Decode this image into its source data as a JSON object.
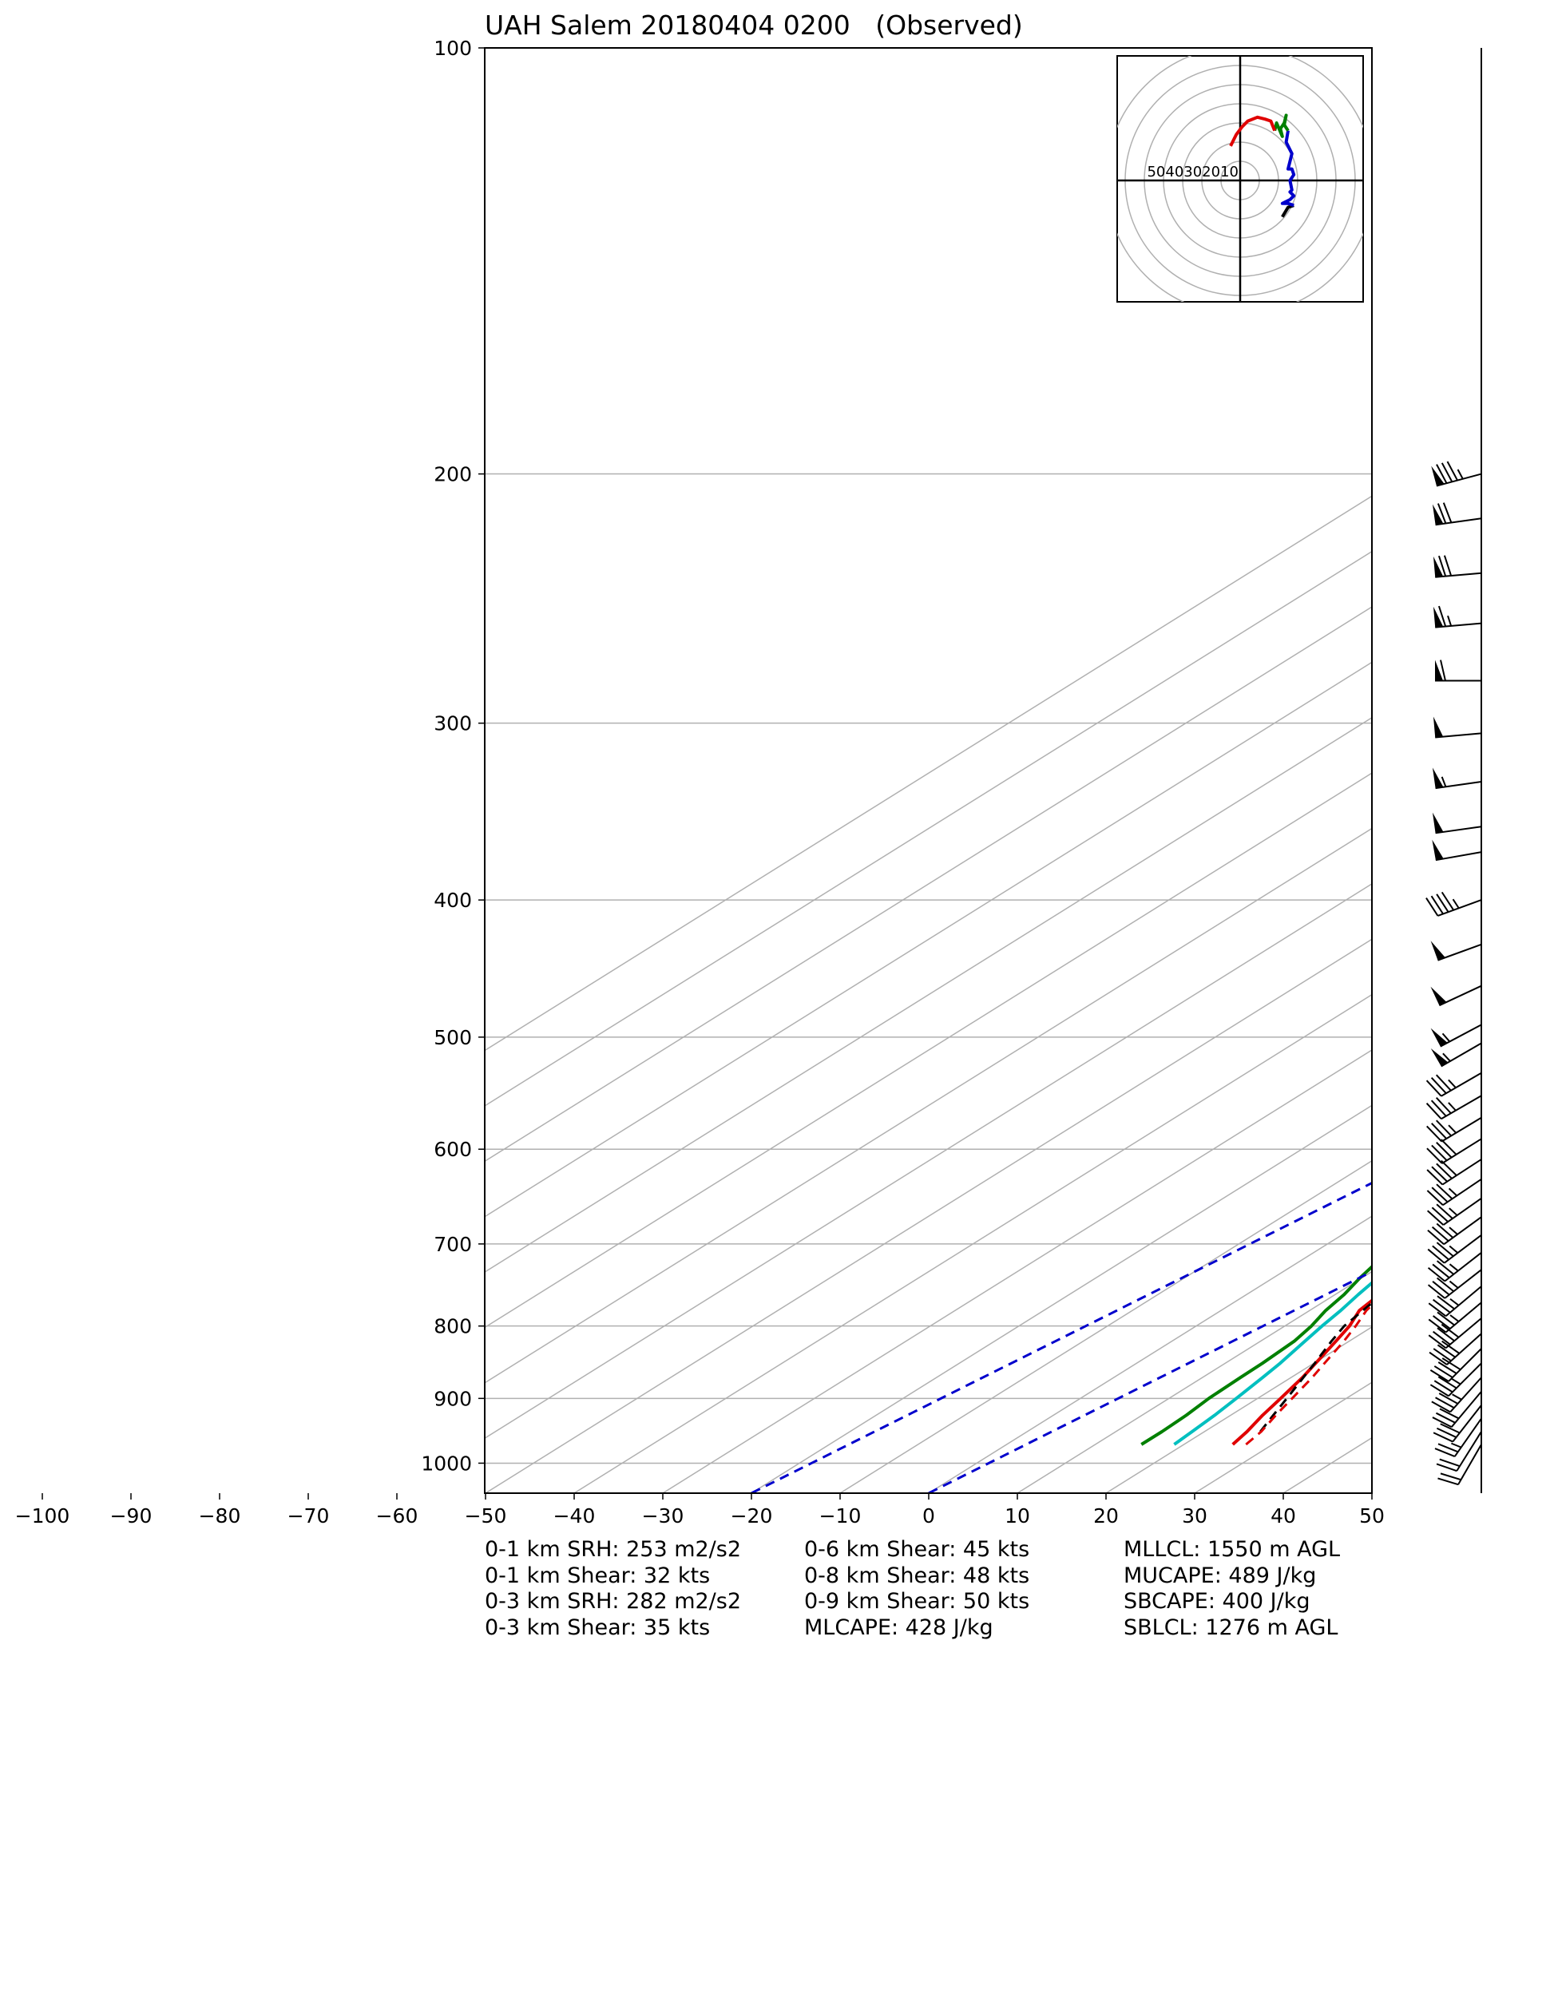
{
  "chart_data": {
    "type": "skew-t",
    "title": "UAH Salem 20180404 0200   (Observed)",
    "ylabel": "",
    "xlabel": "",
    "y_scale": "log",
    "y_inverted": true,
    "ylim": [
      1050,
      100
    ],
    "xlim": [
      -100,
      50
    ],
    "y_ticks": [
      100,
      200,
      300,
      400,
      500,
      600,
      700,
      800,
      900,
      1000
    ],
    "x_ticks": [
      -100,
      -90,
      -80,
      -70,
      -60,
      -50,
      -40,
      -30,
      -20,
      -10,
      0,
      10,
      20,
      30,
      40,
      50
    ],
    "skewed_isotherms": [
      -130,
      -120,
      -110,
      -100,
      -90,
      -80,
      -70,
      -60,
      -50,
      -40,
      -30,
      -20,
      -10,
      0,
      10,
      20,
      30,
      40,
      50
    ],
    "highlighted_isotherms": [
      -20,
      0
    ],
    "series": [
      {
        "color": "#e00000",
        "points": [
          [
            970,
            25.5
          ],
          [
            950,
            24.8
          ],
          [
            925,
            23.6
          ],
          [
            900,
            22.6
          ],
          [
            870,
            21.3
          ],
          [
            850,
            20.2
          ],
          [
            820,
            18.5
          ],
          [
            800,
            17.3
          ],
          [
            780,
            15.6
          ],
          [
            760,
            15.0
          ],
          [
            740,
            14.2
          ],
          [
            720,
            13.6
          ],
          [
            700,
            12.6
          ],
          [
            680,
            12.0
          ],
          [
            660,
            11.2
          ],
          [
            640,
            10.5
          ],
          [
            620,
            10.3
          ],
          [
            600,
            9.8
          ],
          [
            580,
            9.2
          ],
          [
            560,
            8.2
          ],
          [
            540,
            6.8
          ],
          [
            520,
            5.2
          ],
          [
            500,
            4.2
          ],
          [
            480,
            3.3
          ],
          [
            460,
            2.5
          ],
          [
            440,
            1.7
          ],
          [
            420,
            0.4
          ],
          [
            400,
            -1.2
          ],
          [
            380,
            -3.5
          ],
          [
            360,
            -5.2
          ],
          [
            340,
            -7.5
          ],
          [
            320,
            -9.3
          ],
          [
            300,
            -12.0
          ],
          [
            280,
            -15.0
          ],
          [
            260,
            -18.3
          ],
          [
            240,
            -21.5
          ],
          [
            220,
            -25.0
          ],
          [
            205,
            -28.5
          ],
          [
            200,
            -30.0
          ],
          [
            196,
            -30.5
          ],
          [
            190,
            -30.6
          ]
        ]
      },
      {
        "color": "#00bfbf",
        "points": [
          [
            970,
            18.9
          ],
          [
            950,
            18.6
          ],
          [
            925,
            18.2
          ],
          [
            900,
            17.6
          ],
          [
            870,
            16.8
          ],
          [
            850,
            16.2
          ],
          [
            820,
            15.0
          ],
          [
            800,
            14.2
          ],
          [
            780,
            13.5
          ],
          [
            760,
            12.6
          ],
          [
            740,
            11.8
          ],
          [
            720,
            10.9
          ],
          [
            700,
            10.0
          ],
          [
            680,
            9.2
          ],
          [
            660,
            8.5
          ],
          [
            640,
            7.8
          ],
          [
            620,
            6.8
          ],
          [
            600,
            5.5
          ],
          [
            580,
            4.5
          ],
          [
            560,
            3.8
          ],
          [
            540,
            2.5
          ],
          [
            520,
            1.5
          ],
          [
            500,
            0.5
          ],
          [
            480,
            0.2
          ],
          [
            460,
            -0.2
          ],
          [
            440,
            -0.5
          ],
          [
            420,
            -1.5
          ],
          [
            400,
            -3.0
          ],
          [
            380,
            -5.0
          ],
          [
            360,
            -6.8
          ],
          [
            340,
            -8.5
          ],
          [
            320,
            -10.0
          ],
          [
            300,
            -13.0
          ],
          [
            280,
            -16.0
          ],
          [
            260,
            -19.3
          ],
          [
            240,
            -22.5
          ],
          [
            220,
            -26.0
          ],
          [
            205,
            -29.5
          ],
          [
            200,
            -30.8
          ],
          [
            196,
            -31.0
          ],
          [
            190,
            -31.0
          ]
        ]
      },
      {
        "color": "#008000",
        "points": [
          [
            970,
            15.2
          ],
          [
            950,
            15.2
          ],
          [
            925,
            15.0
          ],
          [
            900,
            14.5
          ],
          [
            870,
            14.3
          ],
          [
            850,
            14.2
          ],
          [
            820,
            13.8
          ],
          [
            800,
            13.0
          ],
          [
            780,
            11.8
          ],
          [
            760,
            11.0
          ],
          [
            740,
            9.8
          ],
          [
            720,
            8.8
          ],
          [
            700,
            7.8
          ],
          [
            680,
            6.8
          ],
          [
            660,
            5.8
          ],
          [
            640,
            5.0
          ],
          [
            620,
            1.0
          ],
          [
            610,
            -2.0
          ],
          [
            600,
            -4.0
          ],
          [
            590,
            -3.0
          ],
          [
            580,
            -6.5
          ],
          [
            570,
            -9.0
          ],
          [
            560,
            -8.5
          ],
          [
            550,
            -4.0
          ],
          [
            540,
            -4.0
          ],
          [
            520,
            -5.0
          ],
          [
            500,
            -6.0
          ],
          [
            490,
            -4.5
          ],
          [
            480,
            -6.0
          ],
          [
            460,
            -6.5
          ],
          [
            440,
            -7.0
          ],
          [
            420,
            -9.0
          ],
          [
            400,
            -10.5
          ],
          [
            380,
            -12.5
          ],
          [
            360,
            -15.0
          ],
          [
            340,
            -18.0
          ],
          [
            320,
            -20.5
          ],
          [
            300,
            -24.0
          ],
          [
            280,
            -27.5
          ],
          [
            260,
            -30.5
          ],
          [
            240,
            -34.0
          ],
          [
            220,
            -38.5
          ],
          [
            205,
            -41.0
          ],
          [
            200,
            -42.0
          ],
          [
            195,
            -42.3
          ],
          [
            190,
            -42.5
          ]
        ]
      },
      {
        "color": "#000000",
        "style": "dashed",
        "points": [
          [
            950,
            26.3
          ],
          [
            925,
            24.8
          ],
          [
            900,
            23.3
          ],
          [
            870,
            21.4
          ],
          [
            850,
            20.1
          ],
          [
            820,
            18.0
          ],
          [
            800,
            16.7
          ],
          [
            780,
            16.0
          ],
          [
            760,
            15.3
          ],
          [
            740,
            14.6
          ],
          [
            720,
            13.9
          ],
          [
            700,
            13.1
          ],
          [
            680,
            12.3
          ],
          [
            660,
            11.5
          ],
          [
            640,
            10.6
          ],
          [
            620,
            9.7
          ],
          [
            600,
            8.7
          ],
          [
            580,
            7.6
          ],
          [
            560,
            6.5
          ],
          [
            540,
            5.3
          ],
          [
            520,
            4.0
          ],
          [
            500,
            2.6
          ],
          [
            480,
            1.0
          ],
          [
            460,
            -0.7
          ],
          [
            440,
            -2.5
          ],
          [
            420,
            -4.6
          ],
          [
            400,
            -6.8
          ],
          [
            380,
            -9.2
          ],
          [
            360,
            -11.8
          ],
          [
            340,
            -14.7
          ],
          [
            320,
            -17.8
          ],
          [
            300,
            -21.2
          ],
          [
            280,
            -24.9
          ],
          [
            260,
            -29.0
          ],
          [
            240,
            -33.5
          ],
          [
            220,
            -38.5
          ],
          [
            200,
            -44.0
          ],
          [
            190,
            -47.0
          ]
        ]
      },
      {
        "color": "#e00000",
        "style": "dashed",
        "points": [
          [
            970,
            27.0
          ],
          [
            950,
            26.4
          ],
          [
            925,
            25.1
          ],
          [
            900,
            23.9
          ],
          [
            870,
            22.4
          ],
          [
            850,
            21.2
          ],
          [
            820,
            19.4
          ],
          [
            800,
            18.0
          ],
          [
            780,
            16.4
          ],
          [
            760,
            15.4
          ],
          [
            740,
            14.5
          ],
          [
            720,
            13.7
          ],
          [
            700,
            12.7
          ],
          [
            680,
            11.6
          ],
          [
            660,
            10.6
          ],
          [
            640,
            9.8
          ]
        ]
      },
      {
        "color": "#0000cc",
        "style": "dashed",
        "points": [
          [
            1050,
            -20.0
          ],
          [
            150,
            34.0
          ],
          [
            100,
            72.0
          ]
        ]
      },
      {
        "color": "#0000cc",
        "style": "dashed",
        "points": [
          [
            1050,
            0.0
          ],
          [
            150,
            54.0
          ],
          [
            100,
            92.0
          ]
        ]
      }
    ],
    "wind_barbs": [
      {
        "p": 970,
        "spd": 20,
        "dir": 210
      },
      {
        "p": 950,
        "spd": 20,
        "dir": 212
      },
      {
        "p": 930,
        "spd": 25,
        "dir": 215
      },
      {
        "p": 910,
        "spd": 30,
        "dir": 218
      },
      {
        "p": 890,
        "spd": 30,
        "dir": 220
      },
      {
        "p": 870,
        "spd": 35,
        "dir": 222
      },
      {
        "p": 850,
        "spd": 35,
        "dir": 225
      },
      {
        "p": 830,
        "spd": 40,
        "dir": 225
      },
      {
        "p": 810,
        "spd": 40,
        "dir": 228
      },
      {
        "p": 790,
        "spd": 40,
        "dir": 230
      },
      {
        "p": 770,
        "spd": 35,
        "dir": 230
      },
      {
        "p": 750,
        "spd": 35,
        "dir": 230
      },
      {
        "p": 730,
        "spd": 35,
        "dir": 232
      },
      {
        "p": 710,
        "spd": 35,
        "dir": 232
      },
      {
        "p": 690,
        "spd": 35,
        "dir": 233
      },
      {
        "p": 670,
        "spd": 35,
        "dir": 234
      },
      {
        "p": 650,
        "spd": 35,
        "dir": 235
      },
      {
        "p": 630,
        "spd": 35,
        "dir": 236
      },
      {
        "p": 610,
        "spd": 40,
        "dir": 237
      },
      {
        "p": 590,
        "spd": 40,
        "dir": 238
      },
      {
        "p": 570,
        "spd": 35,
        "dir": 239
      },
      {
        "p": 550,
        "spd": 35,
        "dir": 240
      },
      {
        "p": 530,
        "spd": 35,
        "dir": 240
      },
      {
        "p": 505,
        "spd": 55,
        "dir": 240
      },
      {
        "p": 490,
        "spd": 55,
        "dir": 242
      },
      {
        "p": 460,
        "spd": 50,
        "dir": 245
      },
      {
        "p": 430,
        "spd": 50,
        "dir": 250
      },
      {
        "p": 400,
        "spd": 45,
        "dir": 250
      },
      {
        "p": 370,
        "spd": 50,
        "dir": 260
      },
      {
        "p": 355,
        "spd": 50,
        "dir": 262
      },
      {
        "p": 330,
        "spd": 55,
        "dir": 262
      },
      {
        "p": 305,
        "spd": 50,
        "dir": 265
      },
      {
        "p": 280,
        "spd": 60,
        "dir": 270
      },
      {
        "p": 255,
        "spd": 65,
        "dir": 265
      },
      {
        "p": 235,
        "spd": 70,
        "dir": 265
      },
      {
        "p": 215,
        "spd": 70,
        "dir": 262
      },
      {
        "p": 200,
        "spd": 85,
        "dir": 255
      }
    ],
    "hodograph": {
      "ring_labels": [
        "50",
        "40",
        "30",
        "20",
        "10"
      ],
      "ring_step": 10,
      "ring_count": 7,
      "segments": [
        {
          "color": "#000000",
          "points": [
            [
              22,
              -19
            ],
            [
              25,
              -14
            ],
            [
              28,
              -13
            ]
          ]
        },
        {
          "color": "#0000cc",
          "points": [
            [
              28,
              -13
            ],
            [
              25,
              -12
            ],
            [
              22,
              -12
            ],
            [
              26,
              -10
            ],
            [
              28,
              -8
            ],
            [
              26,
              -6
            ],
            [
              27,
              -5
            ],
            [
              26,
              0
            ],
            [
              28,
              3
            ],
            [
              27,
              6
            ],
            [
              25,
              6
            ],
            [
              26,
              10
            ],
            [
              27,
              14
            ],
            [
              25,
              18
            ],
            [
              24,
              20
            ],
            [
              25,
              26
            ]
          ]
        },
        {
          "color": "#008000",
          "points": [
            [
              25,
              26
            ],
            [
              23,
              29
            ],
            [
              24,
              34
            ],
            [
              23,
              30
            ],
            [
              21,
              27
            ],
            [
              22,
              23
            ],
            [
              19,
              30
            ],
            [
              18,
              26
            ]
          ]
        },
        {
          "color": "#e00000",
          "points": [
            [
              18,
              26
            ],
            [
              16,
              31
            ],
            [
              13,
              32
            ],
            [
              9,
              33
            ],
            [
              4,
              31
            ],
            [
              1,
              28
            ],
            [
              -2,
              24
            ],
            [
              -4,
              20
            ],
            [
              -5,
              18
            ]
          ]
        }
      ]
    }
  },
  "params": {
    "col1": [
      "0-1 km SRH: 253 m2/s2",
      "0-1 km Shear: 32 kts",
      "0-3 km SRH: 282 m2/s2",
      "0-3 km Shear: 35 kts"
    ],
    "col2": [
      "0-6 km Shear: 45 kts",
      "0-8 km Shear: 48 kts",
      "0-9 km Shear: 50 kts",
      "MLCAPE: 428 J/kg"
    ],
    "col3": [
      "MLLCL: 1550 m AGL",
      "MUCAPE: 489 J/kg",
      "SBCAPE: 400 J/kg",
      "SBLCL: 1276 m AGL"
    ]
  }
}
